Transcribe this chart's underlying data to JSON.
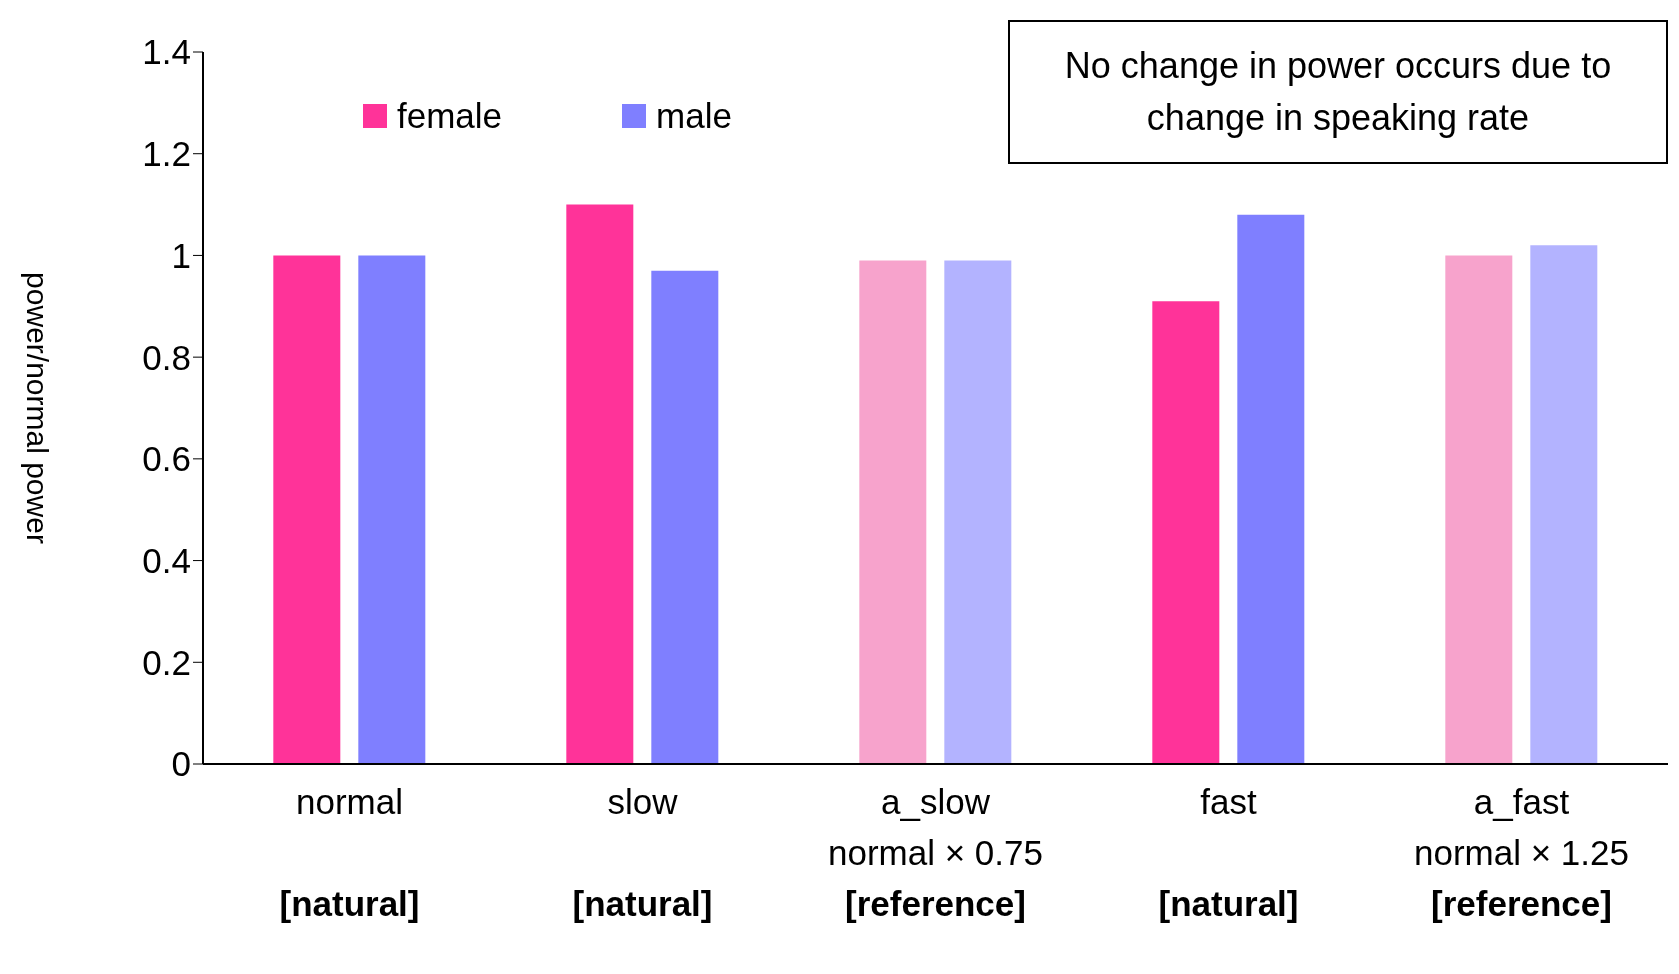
{
  "chart_data": {
    "type": "bar",
    "categories": [
      "normal\n[natural]",
      "slow\n[natural]",
      "a_slow\nnormal × 0.75\n[reference]",
      "fast\n[natural]",
      "a_fast\nnormal × 1.25\n[reference]"
    ],
    "series": [
      {
        "name": "female",
        "color": "#ff3399",
        "colors": [
          "#ff3399",
          "#ff3399",
          "#f7a3cc",
          "#ff3399",
          "#f7a3cc"
        ],
        "values": [
          1.0,
          1.1,
          0.99,
          0.91,
          1.0
        ]
      },
      {
        "name": "male",
        "color": "#7f7fff",
        "colors": [
          "#7f7fff",
          "#7f7fff",
          "#b3b3ff",
          "#7f7fff",
          "#b3b3ff"
        ],
        "values": [
          1.0,
          0.97,
          0.99,
          1.08,
          1.02
        ]
      }
    ],
    "ylabel": "power/normal power",
    "ylim": [
      0,
      1.4
    ],
    "yticks": [
      0,
      0.2,
      0.4,
      0.6,
      0.8,
      1,
      1.2,
      1.4
    ],
    "grid": false,
    "legend": "top left",
    "annotations": [
      "No change in power occurs due to change in speaking rate"
    ]
  }
}
